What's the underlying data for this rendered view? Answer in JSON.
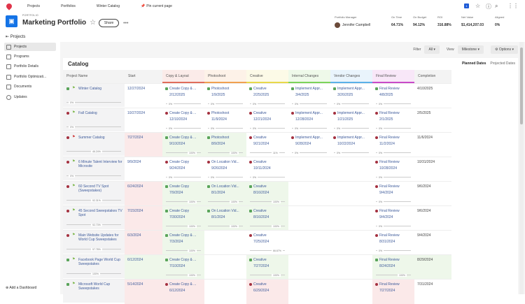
{
  "topnav": {
    "items": [
      "Projects",
      "Portfolios",
      "Winter Catalog"
    ],
    "pin": "Pin current page",
    "badge": "1"
  },
  "header": {
    "kicker": "PORTFOLIO",
    "title": "Marketing Portfolio",
    "share": "Share",
    "stats": [
      {
        "label": "Portfolio Manager",
        "value": "Jennifer Campbell"
      },
      {
        "label": "On Time",
        "value": "64.71%"
      },
      {
        "label": "On Budget",
        "value": "94.12%"
      },
      {
        "label": "ROI",
        "value": "316.88%"
      },
      {
        "label": "Net Value",
        "value": "$1,414,207.03"
      },
      {
        "label": "Aligned",
        "value": "0%"
      }
    ]
  },
  "sidebar": {
    "header": "Projects",
    "items": [
      "Projects",
      "Programs",
      "Portfolio Details",
      "Portfolio Optimizati...",
      "Documents",
      "Updates"
    ],
    "add": "Add a Dashboard"
  },
  "toolbar": {
    "filter_label": "Filter",
    "filter_value": "All",
    "view_label": "View",
    "view_value": "Milestone",
    "options": "Options"
  },
  "catalog": {
    "title": "Catalog",
    "date_tabs": [
      "Planned Dates",
      "Projected Dates"
    ],
    "columns": [
      {
        "label": "Project Name"
      },
      {
        "label": "Start"
      },
      {
        "label": "Copy & Layout",
        "color": "#e06c5a"
      },
      {
        "label": "Photoshoot",
        "color": "#f0a050"
      },
      {
        "label": "Creative",
        "color": "#e8d84a"
      },
      {
        "label": "Internal Changes",
        "color": "#7cd35a"
      },
      {
        "label": "Vendor Changes",
        "color": "#5ab0e8"
      },
      {
        "label": "Final Review",
        "color": "#c84ac8"
      },
      {
        "label": "Completion"
      }
    ],
    "rows": [
      {
        "name": "Winter Catalog",
        "status": "green",
        "progress": "0%",
        "start": "12/27/2024",
        "start_state": "",
        "completion": "4/10/2025",
        "milestones": [
          {
            "name": "Create Copy & ...",
            "date": "2/12/2025",
            "pct": "0%",
            "status": "green",
            "state": ""
          },
          {
            "name": "Photoshoot",
            "date": "1/9/2025",
            "pct": "0%",
            "status": "green",
            "state": ""
          },
          {
            "name": "Creative",
            "date": "2/25/2025",
            "pct": "0%",
            "status": "green",
            "state": ""
          },
          {
            "name": "Implement Appr...",
            "date": "3/4/2025",
            "pct": "0%",
            "status": "green",
            "state": ""
          },
          {
            "name": "Implement Appr...",
            "date": "3/26/2025",
            "pct": "0%",
            "status": "green",
            "state": ""
          },
          {
            "name": "Final Review",
            "date": "4/8/2025",
            "pct": "0%",
            "status": "green",
            "state": ""
          }
        ]
      },
      {
        "name": "Fall Catalog",
        "status": "red",
        "progress": "0%",
        "start": "10/27/2024",
        "start_state": "",
        "completion": "2/5/2025",
        "milestones": [
          {
            "name": "Create Copy & ...",
            "date": "12/10/2024",
            "pct": "0%",
            "status": "red",
            "state": ""
          },
          {
            "name": "Photoshoot",
            "date": "11/9/2024",
            "pct": "0%",
            "status": "red",
            "state": ""
          },
          {
            "name": "Creative",
            "date": "12/21/2024",
            "pct": "0%",
            "status": "red",
            "state": ""
          },
          {
            "name": "Implement Appr...",
            "date": "12/28/2024",
            "pct": "0%",
            "status": "red",
            "state": ""
          },
          {
            "name": "Implement Appr...",
            "date": "1/21/2025",
            "pct": "0%",
            "status": "red",
            "state": ""
          },
          {
            "name": "Final Review",
            "date": "2/1/2025",
            "pct": "0%",
            "status": "red",
            "state": ""
          }
        ]
      },
      {
        "name": "Summer Catalog",
        "status": "red",
        "progress": "46.24%",
        "start": "7/27/2024",
        "start_state": "late",
        "completion": "11/6/2024",
        "milestones": [
          {
            "name": "Create Copy & ...",
            "date": "9/10/2024",
            "pct": "100%",
            "status": "green",
            "state": "done"
          },
          {
            "name": "Photoshoot",
            "date": "8/9/2024",
            "pct": "100%",
            "status": "green",
            "state": "done"
          },
          {
            "name": "Creative",
            "date": "9/21/2024",
            "pct": "11%",
            "status": "red",
            "state": ""
          },
          {
            "name": "Implement Appr...",
            "date": "9/28/2024",
            "pct": "0%",
            "status": "red",
            "state": ""
          },
          {
            "name": "Implement Appr...",
            "date": "10/22/2024",
            "pct": "0%",
            "status": "red",
            "state": ""
          },
          {
            "name": "Final Review",
            "date": "11/2/2024",
            "pct": "0%",
            "status": "red",
            "state": ""
          }
        ]
      },
      {
        "name": "6 Minute Talent Interview for Microsite",
        "status": "red",
        "progress": "0%",
        "start": "9/9/2024",
        "start_state": "",
        "completion": "10/31/2024",
        "milestones": [
          {
            "name": "Create Copy",
            "date": "9/24/2024",
            "pct": "0%",
            "status": "red",
            "state": ""
          },
          {
            "name": "On Location Vid...",
            "date": "9/26/2024",
            "pct": "0%",
            "status": "red",
            "state": ""
          },
          {
            "name": "Creative",
            "date": "10/11/2024",
            "pct": "0%",
            "status": "red",
            "state": ""
          },
          null,
          null,
          {
            "name": "Final Review",
            "date": "10/28/2024",
            "pct": "0%",
            "status": "red",
            "state": ""
          }
        ]
      },
      {
        "name": "60 Second TV Spot (Sweepstakes)",
        "status": "red",
        "progress": "92.31%",
        "start": "6/24/2024",
        "start_state": "late",
        "completion": "9/6/2024",
        "milestones": [
          {
            "name": "Create Copy",
            "date": "7/9/2024",
            "pct": "100%",
            "status": "green",
            "state": "done"
          },
          {
            "name": "On Location Vid...",
            "date": "8/1/2024",
            "pct": "100%",
            "status": "green",
            "state": "done"
          },
          {
            "name": "Creative",
            "date": "8/16/2024",
            "pct": "100%",
            "status": "green",
            "state": "done"
          },
          null,
          null,
          {
            "name": "Final Review",
            "date": "9/4/2024",
            "pct": "0%",
            "status": "red",
            "state": ""
          }
        ]
      },
      {
        "name": "45 Second Sweepstakes TV Spot",
        "status": "red",
        "progress": "92.73%",
        "start": "7/15/2024",
        "start_state": "late",
        "completion": "9/6/2024",
        "milestones": [
          {
            "name": "Create Copy",
            "date": "7/30/2024",
            "pct": "100%",
            "status": "green",
            "state": "done"
          },
          {
            "name": "On Location Vid...",
            "date": "8/1/2024",
            "pct": "100%",
            "status": "green",
            "state": "done"
          },
          {
            "name": "Creative",
            "date": "8/16/2024",
            "pct": "100%",
            "status": "green",
            "state": "done"
          },
          null,
          null,
          {
            "name": "Final Review",
            "date": "9/4/2024",
            "pct": "0%",
            "status": "red",
            "state": ""
          }
        ]
      },
      {
        "name": "Main Website Updates for World Cup Sweepstakes",
        "status": "red",
        "progress": "97.78%",
        "start": "6/3/2024",
        "start_state": "late",
        "completion": "9/4/2024",
        "milestones": [
          {
            "name": "Create Copy & ...",
            "date": "7/3/2024",
            "pct": "100%",
            "status": "green",
            "state": "done"
          },
          null,
          {
            "name": "Creative",
            "date": "7/25/2024",
            "pct": "66.67%",
            "status": "red",
            "state": ""
          },
          null,
          null,
          {
            "name": "Final Review",
            "date": "8/31/2024",
            "pct": "0%",
            "status": "red",
            "state": ""
          }
        ]
      },
      {
        "name": "Facebook Page World Cup Sweepstakes",
        "status": "green",
        "progress": "100%",
        "start": "6/12/2024",
        "start_state": "done",
        "completion": "8/29/2024",
        "milestones": [
          {
            "name": "Create Copy & ...",
            "date": "7/10/2024",
            "pct": "100%",
            "status": "green",
            "state": "done"
          },
          null,
          {
            "name": "Creative",
            "date": "7/27/2024",
            "pct": "100%",
            "status": "green",
            "state": "done"
          },
          null,
          null,
          {
            "name": "Final Review",
            "date": "8/24/2024",
            "pct": "100%",
            "status": "green",
            "state": "done"
          }
        ]
      },
      {
        "name": "Microsoft World Cup Sweepstakes",
        "status": "green",
        "progress": "",
        "start": "5/14/2024",
        "start_state": "late",
        "completion": "7/31/2024",
        "milestones": [
          {
            "name": "Create Copy & ...",
            "date": "6/12/2024",
            "pct": "",
            "status": "red",
            "state": "late"
          },
          null,
          {
            "name": "Creative",
            "date": "6/29/2024",
            "pct": "",
            "status": "red",
            "state": "late"
          },
          null,
          null,
          {
            "name": "Final Review",
            "date": "7/27/2024",
            "pct": "",
            "status": "red",
            "state": "late"
          }
        ]
      }
    ]
  }
}
